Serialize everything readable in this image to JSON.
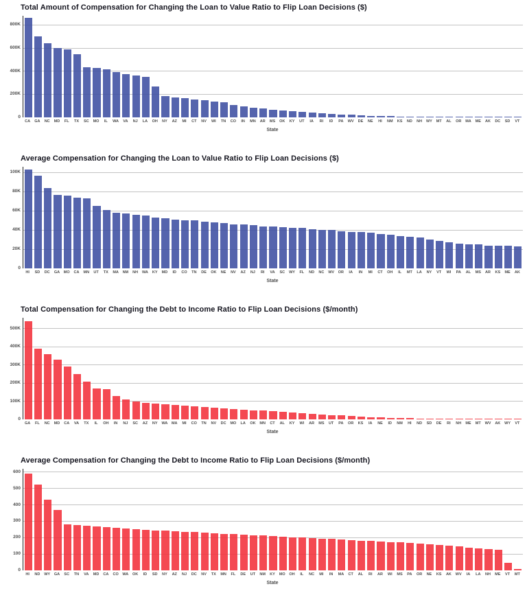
{
  "page": {
    "background": "#ffffff"
  },
  "chart_data": [
    {
      "type": "bar",
      "title": "Total Amount of Compensation for Changing the Loan to Value Ratio to Flip Loan Decisions ($)",
      "xlabel": "State",
      "bar_color": "#3d4fa2",
      "grid": true,
      "ymax": 880000,
      "tick_values": [
        0,
        200000,
        400000,
        600000,
        800000
      ],
      "tick_labels": [
        "0",
        "200K",
        "400K",
        "600K",
        "800K"
      ],
      "categories": [
        "CA",
        "GA",
        "NC",
        "MD",
        "FL",
        "TX",
        "SC",
        "MO",
        "IL",
        "WA",
        "VA",
        "NJ",
        "LA",
        "OH",
        "NY",
        "AZ",
        "MI",
        "CT",
        "NV",
        "WI",
        "TN",
        "CO",
        "IN",
        "MN",
        "AR",
        "MS",
        "OK",
        "KY",
        "UT",
        "IA",
        "RI",
        "ID",
        "PA",
        "WV",
        "DE",
        "NE",
        "HI",
        "NM",
        "KS",
        "ND",
        "NH",
        "WY",
        "MT",
        "AL",
        "OR",
        "MA",
        "ME",
        "AK",
        "DC",
        "SD",
        "VT"
      ],
      "values": [
        860000,
        700000,
        645000,
        600000,
        590000,
        545000,
        432000,
        430000,
        415000,
        390000,
        375000,
        365000,
        350000,
        268000,
        185000,
        172000,
        168000,
        152000,
        146000,
        136000,
        130000,
        110000,
        95000,
        82000,
        75000,
        66000,
        60000,
        54000,
        48000,
        42000,
        36000,
        30000,
        25000,
        21000,
        17000,
        14000,
        12000,
        10000,
        8000,
        7000,
        6000,
        5000,
        4000,
        3500,
        3000,
        2500,
        2000,
        1600,
        1300,
        1000,
        800
      ]
    },
    {
      "type": "bar",
      "title": "Average Compensation for Changing the Loan to Value Ratio to Flip Loan Decisions ($)",
      "xlabel": "State",
      "bar_color": "#3d4fa2",
      "grid": true,
      "ymax": 106000,
      "tick_values": [
        0,
        20000,
        40000,
        60000,
        80000,
        100000
      ],
      "tick_labels": [
        "0",
        "20K",
        "40K",
        "60K",
        "80K",
        "100K"
      ],
      "categories": [
        "HI",
        "SD",
        "DC",
        "GA",
        "MO",
        "CA",
        "MN",
        "UT",
        "TX",
        "MA",
        "NM",
        "NH",
        "WA",
        "KY",
        "MD",
        "ID",
        "CO",
        "TN",
        "DE",
        "OK",
        "NE",
        "NV",
        "AZ",
        "NJ",
        "RI",
        "VA",
        "SC",
        "WY",
        "FL",
        "ND",
        "NC",
        "WV",
        "OR",
        "IA",
        "IN",
        "MI",
        "CT",
        "OH",
        "IL",
        "MT",
        "LA",
        "NY",
        "VT",
        "WI",
        "PA",
        "AL",
        "MS",
        "AR",
        "KS",
        "ME",
        "AK"
      ],
      "values": [
        103000,
        97000,
        84000,
        77000,
        76000,
        74000,
        73000,
        65000,
        61000,
        58000,
        57000,
        56000,
        55000,
        53000,
        52000,
        51000,
        50000,
        50000,
        49000,
        48000,
        47000,
        46000,
        46000,
        45000,
        44000,
        44000,
        43000,
        42000,
        42000,
        41000,
        40000,
        40000,
        39000,
        38000,
        38000,
        37000,
        36000,
        35000,
        34000,
        33000,
        32000,
        30000,
        29000,
        27000,
        26000,
        25000,
        25000,
        24000,
        24000,
        24000,
        23000
      ]
    },
    {
      "type": "bar",
      "title": "Total Compensation for Changing the Debt to Income Ratio to Flip Loan Decisions ($/month)",
      "xlabel": "State",
      "bar_color": "#f2303a",
      "grid": true,
      "ymax": 560000,
      "tick_values": [
        0,
        100000,
        200000,
        300000,
        400000,
        500000
      ],
      "tick_labels": [
        "0",
        "100K",
        "200K",
        "300K",
        "400K",
        "500K"
      ],
      "categories": [
        "GA",
        "FL",
        "NC",
        "MD",
        "CA",
        "VA",
        "TX",
        "IL",
        "OH",
        "IN",
        "NJ",
        "SC",
        "AZ",
        "NY",
        "WA",
        "MA",
        "MI",
        "CO",
        "TN",
        "NV",
        "DC",
        "MO",
        "LA",
        "OK",
        "MN",
        "CT",
        "AL",
        "KY",
        "WI",
        "AR",
        "MS",
        "UT",
        "PA",
        "OR",
        "KS",
        "IA",
        "NE",
        "ID",
        "NM",
        "HI",
        "ND",
        "SD",
        "DE",
        "RI",
        "NH",
        "ME",
        "MT",
        "WV",
        "AK",
        "WY",
        "VT"
      ],
      "values": [
        540000,
        390000,
        360000,
        330000,
        290000,
        250000,
        210000,
        170000,
        165000,
        130000,
        110000,
        100000,
        92000,
        88000,
        84000,
        80000,
        76000,
        72000,
        68000,
        64000,
        60000,
        57000,
        54000,
        51000,
        48000,
        45000,
        42000,
        38000,
        34000,
        30000,
        27000,
        24000,
        21000,
        18000,
        15000,
        12000,
        10000,
        8000,
        7000,
        6000,
        5000,
        4500,
        4000,
        3500,
        3000,
        2500,
        2000,
        1800,
        1500,
        1200,
        1000
      ]
    },
    {
      "type": "bar",
      "title": "Average Compensation for Changing the Debt to Income Ratio to Flip Loan Decisions ($/month)",
      "xlabel": "State",
      "bar_color": "#f2303a",
      "grid": true,
      "ymax": 620,
      "tick_values": [
        0,
        100,
        200,
        300,
        400,
        500,
        600
      ],
      "tick_labels": [
        "0",
        "100",
        "200",
        "300",
        "400",
        "500",
        "600"
      ],
      "categories": [
        "HI",
        "ND",
        "WY",
        "GA",
        "SC",
        "TN",
        "VA",
        "MD",
        "CA",
        "CO",
        "WA",
        "OK",
        "ID",
        "SD",
        "NY",
        "AZ",
        "NJ",
        "DC",
        "NV",
        "TX",
        "MN",
        "FL",
        "DE",
        "UT",
        "NM",
        "KY",
        "MO",
        "OH",
        "IL",
        "NC",
        "MI",
        "IN",
        "MA",
        "CT",
        "AL",
        "RI",
        "AR",
        "WI",
        "MS",
        "PA",
        "OR",
        "NE",
        "KS",
        "AK",
        "WV",
        "IA",
        "LA",
        "NH",
        "ME",
        "VT",
        "MT"
      ],
      "values": [
        590,
        525,
        430,
        370,
        280,
        276,
        272,
        268,
        264,
        260,
        256,
        252,
        248,
        245,
        242,
        239,
        236,
        233,
        230,
        227,
        224,
        221,
        218,
        215,
        212,
        209,
        206,
        203,
        200,
        197,
        194,
        191,
        188,
        185,
        182,
        179,
        176,
        173,
        170,
        167,
        163,
        159,
        155,
        150,
        145,
        140,
        135,
        130,
        125,
        45,
        10
      ]
    }
  ]
}
